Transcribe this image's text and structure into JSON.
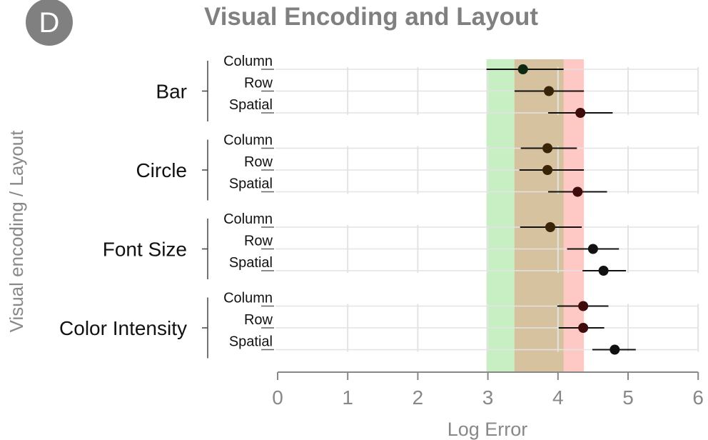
{
  "panel_label": "D",
  "colors": {
    "badge": "#808080",
    "title": "#808080",
    "axis_text": "#888888",
    "grid": "#e3e3e3",
    "point_dark": "#111111",
    "green_band": "#c8efc4",
    "red_band": "#fec9c5",
    "overlap_band": "#d6c29f"
  },
  "chart_data": {
    "type": "scatter",
    "title": "Visual Encoding and Layout",
    "xlabel": "Log Error",
    "ylabel": "Visual encoding / Layout",
    "xlim": [
      0,
      6
    ],
    "x_ticks": [
      0,
      1,
      2,
      3,
      4,
      5,
      6
    ],
    "grid": true,
    "bands": [
      {
        "name": "green",
        "x0": 2.98,
        "x1": 4.08
      },
      {
        "name": "red",
        "x0": 3.38,
        "x1": 4.37
      }
    ],
    "groups": [
      {
        "label": "Bar",
        "rows": [
          {
            "layout": "Column",
            "mean": 3.5,
            "ci_low": 2.98,
            "ci_high": 4.08,
            "color": "#0d2a10"
          },
          {
            "layout": "Row",
            "mean": 3.87,
            "ci_low": 3.38,
            "ci_high": 4.37,
            "color": "#3a2408"
          },
          {
            "layout": "Spatial",
            "mean": 4.32,
            "ci_low": 3.86,
            "ci_high": 4.78,
            "color": "#3e0c0c"
          }
        ]
      },
      {
        "label": "Circle",
        "rows": [
          {
            "layout": "Column",
            "mean": 3.85,
            "ci_low": 3.47,
            "ci_high": 4.27,
            "color": "#3a2408"
          },
          {
            "layout": "Row",
            "mean": 3.85,
            "ci_low": 3.45,
            "ci_high": 4.37,
            "color": "#3a2408"
          },
          {
            "layout": "Spatial",
            "mean": 4.28,
            "ci_low": 3.86,
            "ci_high": 4.7,
            "color": "#3e0c0c"
          }
        ]
      },
      {
        "label": "Font Size",
        "rows": [
          {
            "layout": "Column",
            "mean": 3.89,
            "ci_low": 3.46,
            "ci_high": 4.34,
            "color": "#3a2408"
          },
          {
            "layout": "Row",
            "mean": 4.5,
            "ci_low": 4.13,
            "ci_high": 4.87,
            "color": "#111111"
          },
          {
            "layout": "Spatial",
            "mean": 4.65,
            "ci_low": 4.35,
            "ci_high": 4.97,
            "color": "#111111"
          }
        ]
      },
      {
        "label": "Color Intensity",
        "rows": [
          {
            "layout": "Column",
            "mean": 4.36,
            "ci_low": 3.99,
            "ci_high": 4.72,
            "color": "#3e0c0c"
          },
          {
            "layout": "Row",
            "mean": 4.36,
            "ci_low": 4.01,
            "ci_high": 4.66,
            "color": "#3e0c0c"
          },
          {
            "layout": "Spatial",
            "mean": 4.81,
            "ci_low": 4.49,
            "ci_high": 5.11,
            "color": "#111111"
          }
        ]
      }
    ]
  }
}
